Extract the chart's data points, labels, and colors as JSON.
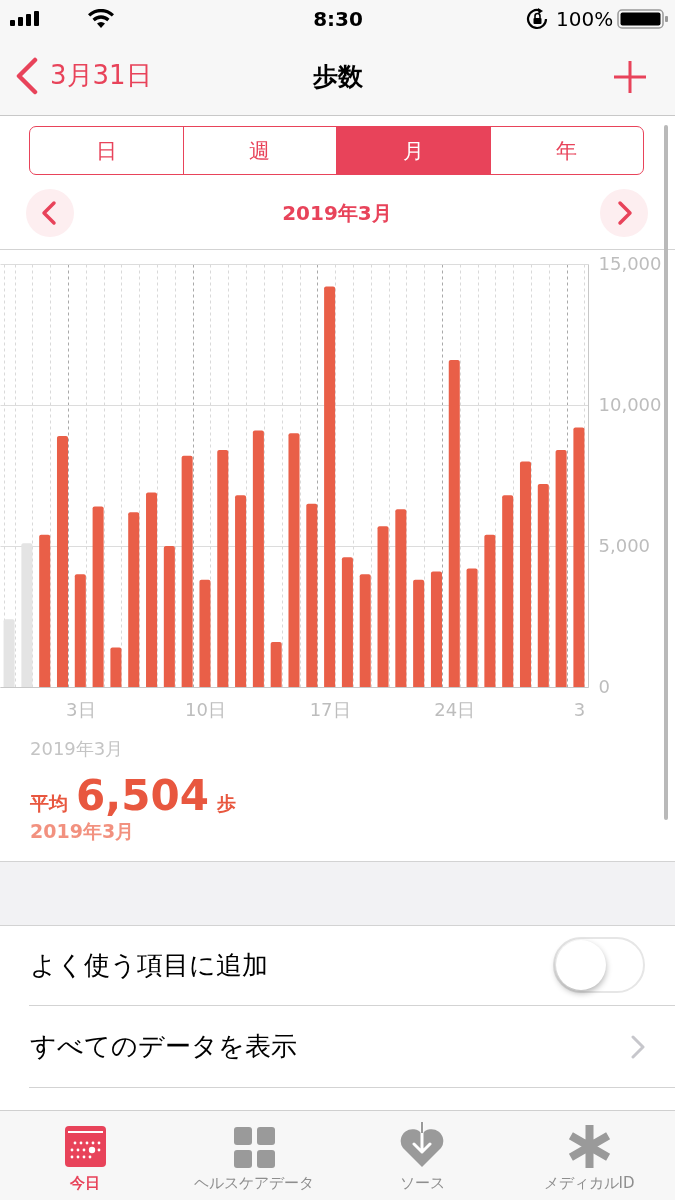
{
  "chart_data": {
    "type": "bar",
    "title": "歩数",
    "subtitle": "2019年3月",
    "categories": [
      null,
      null,
      null,
      null,
      "3日",
      null,
      null,
      null,
      null,
      null,
      null,
      "10日",
      null,
      null,
      null,
      null,
      null,
      null,
      "17日",
      null,
      null,
      null,
      null,
      null,
      null,
      "24日",
      null,
      null,
      null,
      null,
      null,
      null,
      "3"
    ],
    "series": [
      {
        "color": "#e4e4e4",
        "values": [
          2400,
          5100,
          null,
          null,
          null,
          null,
          null,
          null,
          null,
          null,
          null,
          null,
          null,
          null,
          null,
          null,
          null,
          null,
          null,
          null,
          null,
          null,
          null,
          null,
          null,
          null,
          null,
          null,
          null,
          null,
          null,
          null,
          null
        ]
      },
      {
        "color": "#e95f48",
        "values": [
          null,
          null,
          5400,
          8900,
          4000,
          6400,
          1400,
          6200,
          6900,
          5000,
          8200,
          3800,
          8400,
          6800,
          9100,
          1600,
          9000,
          6500,
          14200,
          4600,
          4000,
          5700,
          6300,
          3800,
          4100,
          11600,
          4200,
          5400,
          6800,
          8000,
          7200,
          8400,
          9200
        ]
      }
    ],
    "ylim": [
      0,
      15000
    ],
    "yticks": [
      0,
      {
        "value": 5000,
        "label": "5,000"
      },
      {
        "value": 10000,
        "label": "10,000"
      },
      {
        "value": 15000,
        "label": "15,000"
      }
    ],
    "grid": true,
    "annotations": [
      "8:30",
      "100%",
      "3月31日",
      "日",
      "週",
      "月",
      "年",
      "2019年3月",
      "平均 6,504 歩",
      "2019年3月",
      "よく使う項目に追加",
      "すべてのデータを表示",
      "今日",
      "ヘルスケアデータ",
      "ソース",
      "メディカルID"
    ]
  }
}
